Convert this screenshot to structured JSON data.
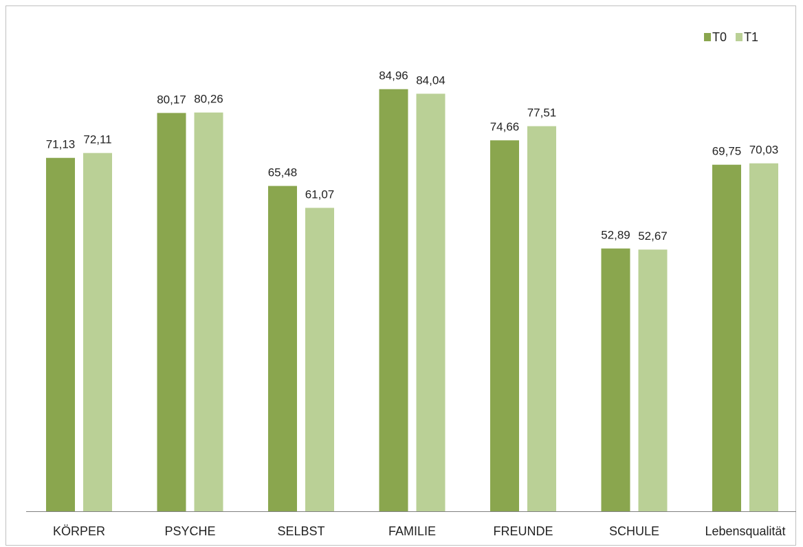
{
  "chart_data": {
    "type": "bar",
    "title": "",
    "xlabel": "",
    "ylabel": "",
    "categories": [
      "KÖRPER",
      "PSYCHE",
      "SELBST",
      "FAMILIE",
      "FREUNDE",
      "SCHULE",
      "Lebensqualität"
    ],
    "series": [
      {
        "name": "T0",
        "color": "#8aa64e",
        "values": [
          71.13,
          80.17,
          65.48,
          84.96,
          74.66,
          52.89,
          69.75
        ],
        "labels": [
          "71,13",
          "80,17",
          "65,48",
          "84,96",
          "74,66",
          "52,89",
          "69,75"
        ]
      },
      {
        "name": "T1",
        "color": "#bad096",
        "values": [
          72.11,
          80.26,
          61.07,
          84.04,
          77.51,
          52.67,
          70.03
        ],
        "labels": [
          "72,11",
          "80,26",
          "61,07",
          "84,04",
          "77,51",
          "52,67",
          "70,03"
        ]
      }
    ],
    "ylim": [
      0,
      100
    ],
    "grid": false,
    "legend_position": "top-right",
    "axis_color": "#7f7f7f"
  }
}
